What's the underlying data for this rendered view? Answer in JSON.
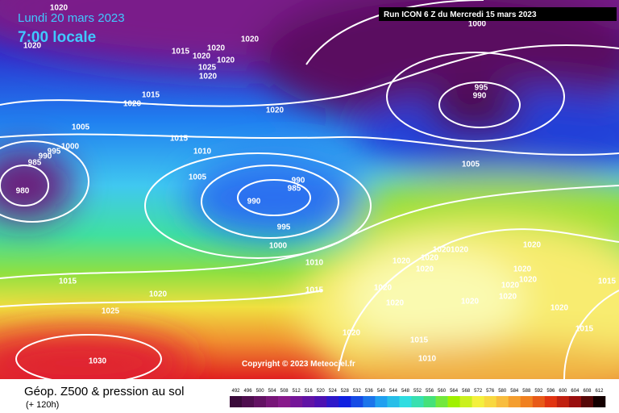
{
  "header": {
    "date": "Lundi 20 mars 2023",
    "time": "7:00 locale",
    "run": "Run ICON 6 Z du Mercredi 15 mars 2023"
  },
  "copyright": "Copyright © 2023 Meteociel.fr",
  "footer": {
    "title": "Géop. Z500 & pression au sol",
    "subtitle": "(+ 120h)"
  },
  "isobar_labels": [
    "1020",
    "1020",
    "1015",
    "1020",
    "1020",
    "1025",
    "1020",
    "1020",
    "1020",
    "1015",
    "1020",
    "1020",
    "1005",
    "1015",
    "1010",
    "1000",
    "995",
    "990",
    "985",
    "980",
    "1005",
    "990",
    "985",
    "990",
    "995",
    "1000",
    "1010",
    "1015",
    "1020",
    "1015",
    "1025",
    "1030",
    "995",
    "990",
    "1005",
    "1020",
    "1020",
    "1020",
    "1020",
    "1020",
    "1020",
    "1020",
    "1020",
    "1020",
    "1020",
    "1020",
    "1020",
    "1020",
    "1020",
    "1015",
    "1015",
    "1015",
    "1010",
    "1020",
    "1000"
  ],
  "color_scale": {
    "labels": [
      492,
      496,
      500,
      504,
      508,
      512,
      516,
      520,
      524,
      528,
      532,
      536,
      540,
      544,
      548,
      552,
      556,
      560,
      564,
      568,
      572,
      576,
      580,
      584,
      588,
      592,
      596,
      600,
      604,
      608,
      612
    ]
  }
}
